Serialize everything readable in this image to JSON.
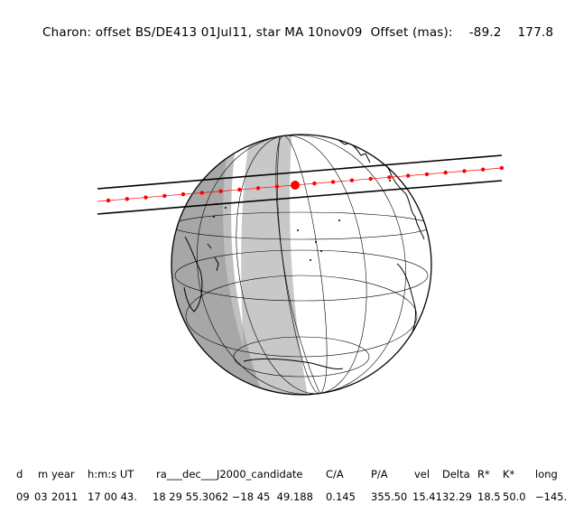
{
  "header": {
    "title": "Charon: offset BS/DE413 01Jul11, star MA 10nov09",
    "offset_label": "Offset (mas):",
    "offset_ra": "-89.2",
    "offset_dec": "177.8"
  },
  "table": {
    "headers": [
      "d",
      "m",
      "year",
      "h:m:s UT",
      "ra___dec___J2000_candidate",
      "C/A",
      "P/A",
      "vel",
      "Delta",
      "R*",
      "K*",
      "long"
    ],
    "values": [
      "09",
      "03",
      "2011",
      "17 00 43.",
      "18 29 55.3062 −18 45  49.188",
      "0.145",
      "355.50",
      "15.41",
      "32.29",
      "18.5",
      "50.0",
      "−145."
    ]
  },
  "colors": {
    "night": "#8c8c8c",
    "twilight": "#c8c8c8",
    "day": "#ffffff",
    "track": "#ff0000",
    "lines": "#000000"
  }
}
